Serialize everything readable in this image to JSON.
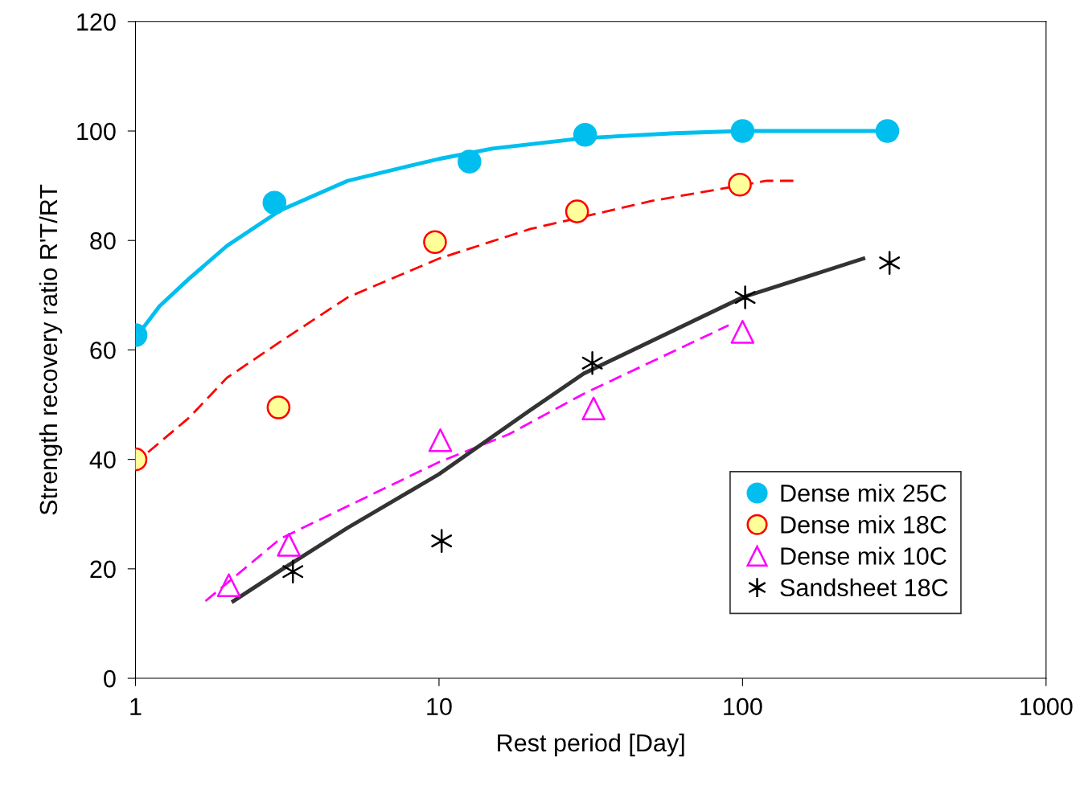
{
  "chart_data": {
    "type": "scatter",
    "xlabel": "Rest period [Day]",
    "ylabel": "Strength recovery ratio R'T/RT",
    "log": "x",
    "xlim": [
      1,
      1000
    ],
    "xticks": [
      1,
      10,
      100,
      1000
    ],
    "ylim": [
      0,
      120
    ],
    "yticks": [
      0,
      20,
      40,
      60,
      80,
      100,
      120
    ],
    "grid": false,
    "legend": "bottom right",
    "series": [
      {
        "type": "line",
        "color": "#00bfef",
        "line_style": "solid",
        "marker": "none",
        "x": [
          1.01,
          1.2,
          1.5,
          2,
          3,
          5,
          10,
          15,
          30,
          60,
          100,
          300
        ],
        "values": [
          62.5,
          68,
          73,
          79,
          85.5,
          90.9,
          94.9,
          96.8,
          98.7,
          99.6,
          100,
          100
        ]
      },
      {
        "type": "line",
        "color": "#ff0000",
        "line_style": "dashed",
        "marker": "none",
        "x": [
          1.1,
          1.5,
          2,
          3,
          5,
          10,
          20,
          50,
          120,
          150
        ],
        "values": [
          41.3,
          47.6,
          54.9,
          61.5,
          69.6,
          76.7,
          82.1,
          87.2,
          90.9,
          90.9
        ]
      },
      {
        "type": "line",
        "color": "#ff00ff",
        "line_style": "dashed",
        "marker": "none",
        "x": [
          1.7,
          3,
          10,
          17,
          30,
          90
        ],
        "values": [
          14.1,
          25.5,
          39.5,
          44.6,
          52,
          64.5
        ]
      },
      {
        "type": "line",
        "color": "#333333",
        "line_style": "solid",
        "marker": "none",
        "x": [
          2.1,
          3,
          5,
          10,
          20,
          30,
          100,
          250
        ],
        "values": [
          14.1,
          19.7,
          27.5,
          37.3,
          49,
          55.7,
          69.6,
          76.7
        ]
      },
      {
        "name": "Dense mix 25C",
        "color": "#00bfef",
        "marker": "circle",
        "x": [
          1,
          2.87,
          12.6,
          30.3,
          100,
          300
        ],
        "values": [
          62.7,
          86.9,
          94.4,
          99.3,
          100,
          100
        ]
      },
      {
        "name": "Dense mix 18C",
        "color": "#ff0000",
        "marker": "circle",
        "x": [
          1,
          2.96,
          9.7,
          28.5,
          98
        ],
        "values": [
          40,
          49.5,
          79.7,
          85.3,
          90.2
        ]
      },
      {
        "name": "Dense mix 10C",
        "color": "#ff00ff",
        "marker": "triangle",
        "x": [
          2.03,
          3.2,
          10.1,
          32.3,
          100
        ],
        "values": [
          17,
          24.4,
          43.5,
          49.3,
          63.3
        ]
      },
      {
        "name": "Sandsheet 18C",
        "color": "#000000",
        "marker": "cross",
        "x": [
          3.3,
          10.2,
          32,
          102,
          305
        ],
        "values": [
          19.5,
          25.1,
          57.6,
          69.6,
          75.9
        ]
      }
    ]
  }
}
